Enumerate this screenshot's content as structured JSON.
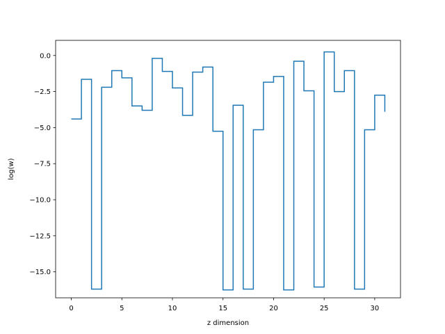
{
  "chart_data": {
    "type": "line",
    "step": "post",
    "xlabel": "z dimension",
    "ylabel": "log(w)",
    "xlim": [
      -1.55,
      32.55
    ],
    "ylim": [
      -16.8,
      1.05
    ],
    "xticks": [
      0,
      5,
      10,
      15,
      20,
      25,
      30
    ],
    "xtick_labels": [
      "0",
      "5",
      "10",
      "15",
      "20",
      "25",
      "30"
    ],
    "yticks": [
      0.0,
      -2.5,
      -5.0,
      -7.5,
      -10.0,
      -12.5,
      -15.0
    ],
    "ytick_labels": [
      "0.0",
      "−2.5",
      "−5.0",
      "−7.5",
      "−10.0",
      "−12.5",
      "−15.0"
    ],
    "grid": false,
    "line_color": "#1f77b4",
    "series": [
      {
        "x": [
          0,
          1,
          2,
          3,
          4,
          5,
          6,
          7,
          8,
          9,
          10,
          11,
          12,
          13,
          14,
          15,
          16,
          17,
          18,
          19,
          20,
          21,
          22,
          23,
          24,
          25,
          26,
          27,
          28,
          29,
          30,
          31
        ],
        "values": [
          -4.4,
          -1.65,
          -16.2,
          -2.2,
          -1.05,
          -1.55,
          -3.5,
          -3.8,
          -0.2,
          -1.1,
          -2.25,
          -4.15,
          -1.15,
          -0.8,
          -5.25,
          -16.25,
          -3.45,
          -16.2,
          -5.15,
          -1.85,
          -1.45,
          -16.25,
          -0.4,
          -2.45,
          -16.05,
          0.25,
          -2.5,
          -1.05,
          -16.2,
          -5.15,
          -2.75,
          -3.9
        ]
      }
    ]
  }
}
